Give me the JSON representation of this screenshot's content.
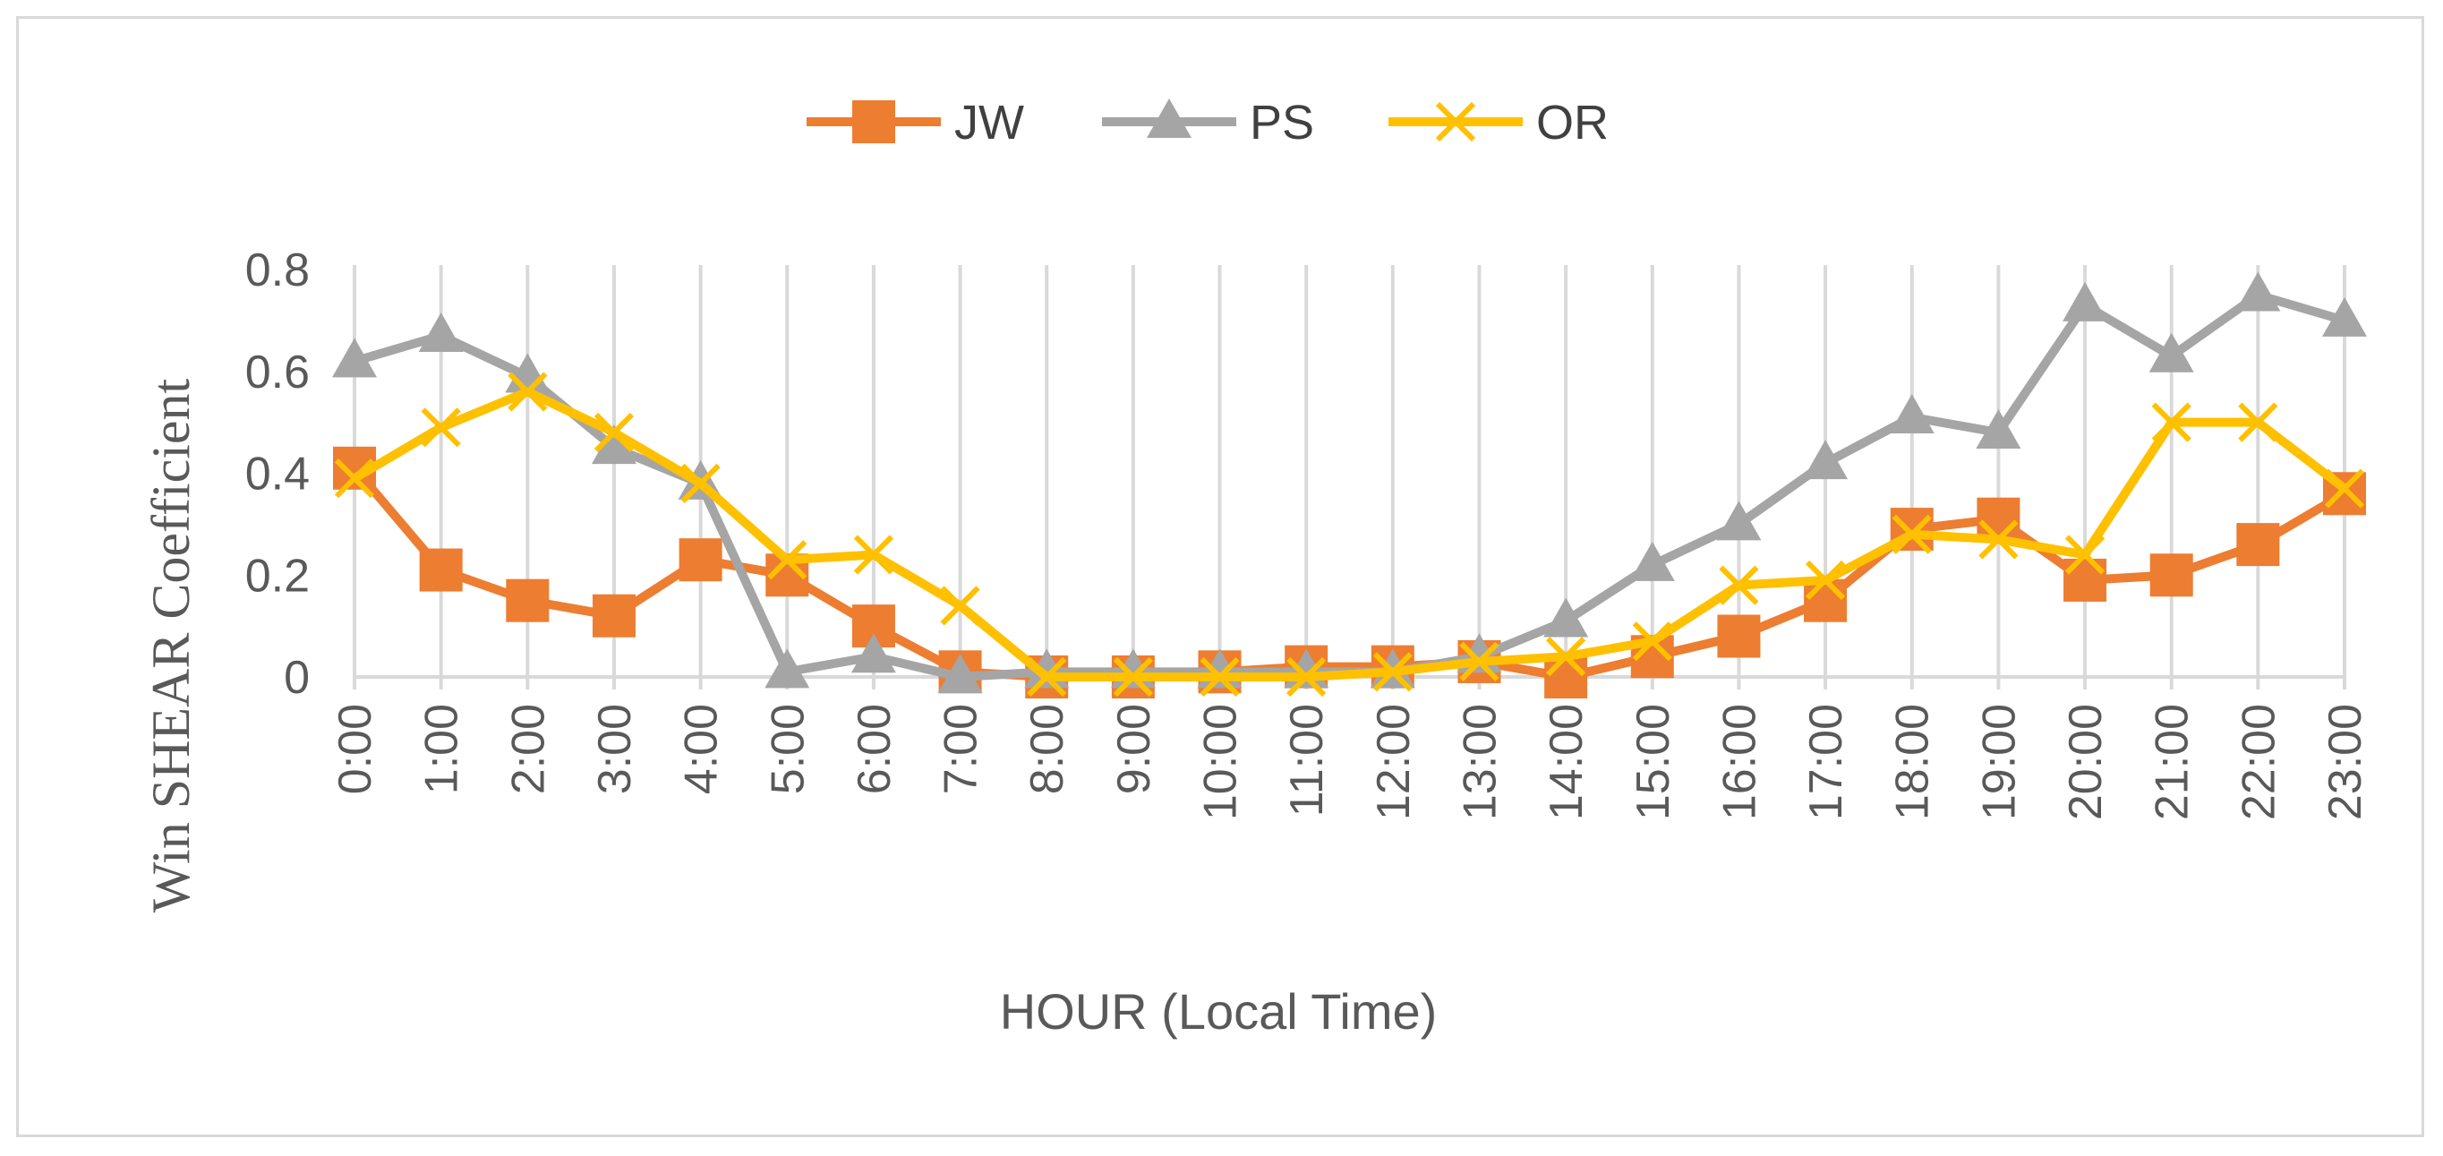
{
  "chart_data": {
    "type": "line",
    "title": "",
    "xlabel": "HOUR (Local Time)",
    "ylabel": "Win SHEAR Coefficient",
    "ylim": [
      0,
      0.8
    ],
    "yticks": [
      "0",
      "0.2",
      "0.4",
      "0.6",
      "0.8"
    ],
    "ytick_values": [
      0,
      0.2,
      0.4,
      0.6,
      0.8
    ],
    "grid": "vertical",
    "legend_position": "top",
    "categories": [
      "0:00",
      "1:00",
      "2:00",
      "3:00",
      "4:00",
      "5:00",
      "6:00",
      "7:00",
      "8:00",
      "9:00",
      "10:00",
      "11:00",
      "12:00",
      "13:00",
      "14:00",
      "15:00",
      "16:00",
      "17:00",
      "18:00",
      "19:00",
      "20:00",
      "21:00",
      "22:00",
      "23:00"
    ],
    "series": [
      {
        "name": "JW",
        "color": "#ed7d31",
        "marker": "square",
        "values": [
          0.41,
          0.21,
          0.15,
          0.12,
          0.23,
          0.2,
          0.1,
          0.01,
          0.0,
          0.0,
          0.01,
          0.02,
          0.02,
          0.03,
          0.0,
          0.04,
          0.08,
          0.15,
          0.29,
          0.31,
          0.19,
          0.2,
          0.26,
          0.36
        ]
      },
      {
        "name": "PS",
        "color": "#a5a5a5",
        "marker": "triangle",
        "values": [
          0.62,
          0.67,
          0.59,
          0.45,
          0.38,
          0.01,
          0.04,
          0.0,
          0.01,
          0.01,
          0.01,
          0.01,
          0.01,
          0.04,
          0.11,
          0.22,
          0.3,
          0.42,
          0.51,
          0.48,
          0.73,
          0.63,
          0.75,
          0.7
        ]
      },
      {
        "name": "OR",
        "color": "#ffc000",
        "marker": "x",
        "values": [
          0.39,
          0.49,
          0.56,
          0.48,
          0.38,
          0.23,
          0.24,
          0.14,
          0.0,
          0.0,
          0.0,
          0.0,
          0.01,
          0.03,
          0.04,
          0.07,
          0.18,
          0.19,
          0.28,
          0.27,
          0.24,
          0.5,
          0.5,
          0.37
        ]
      }
    ]
  }
}
